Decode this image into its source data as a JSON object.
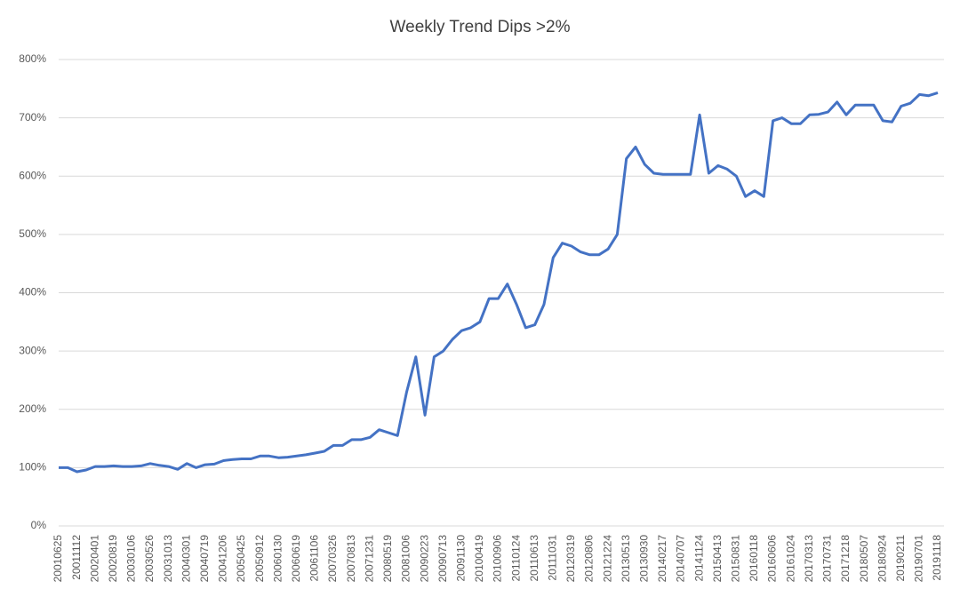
{
  "chart_data": {
    "type": "line",
    "title": "Weekly Trend Dips >2%",
    "categories": [
      "20010625",
      null,
      "20011112",
      null,
      "20020401",
      null,
      "20020819",
      null,
      "20030106",
      null,
      "20030526",
      null,
      "20031013",
      null,
      "20040301",
      null,
      "20040719",
      null,
      "20041206",
      null,
      "20050425",
      null,
      "20050912",
      null,
      "20060130",
      null,
      "20060619",
      null,
      "20061106",
      null,
      "20070326",
      null,
      "20070813",
      null,
      "20071231",
      null,
      "20080519",
      null,
      "20081006",
      null,
      "20090223",
      null,
      "20090713",
      null,
      "20091130",
      null,
      "20100419",
      null,
      "20100906",
      null,
      "20110124",
      null,
      "20110613",
      null,
      "20111031",
      null,
      "20120319",
      null,
      "20120806",
      null,
      "20121224",
      null,
      "20130513",
      null,
      "20130930",
      null,
      "20140217",
      null,
      "20140707",
      null,
      "20141124",
      null,
      "20150413",
      null,
      "20150831",
      null,
      "20160118",
      null,
      "20160606",
      null,
      "20161024",
      null,
      "20170313",
      null,
      "20170731",
      null,
      "20171218",
      null,
      "20180507",
      null,
      "20180924",
      null,
      "20190211",
      null,
      "20190701",
      null,
      "20191118"
    ],
    "series": [
      {
        "name": "Weekly Trend Dips >2%",
        "color": "#4472c4",
        "values": [
          100,
          100,
          93,
          96,
          102,
          102,
          103,
          102,
          102,
          103,
          107,
          104,
          102,
          97,
          107,
          100,
          105,
          106,
          112,
          114,
          115,
          115,
          120,
          120,
          117,
          118,
          120,
          122,
          125,
          128,
          138,
          138,
          148,
          148,
          152,
          165,
          160,
          155,
          230,
          290,
          190,
          290,
          300,
          320,
          335,
          340,
          350,
          390,
          390,
          415,
          380,
          340,
          345,
          380,
          460,
          485,
          480,
          470,
          465,
          465,
          475,
          500,
          630,
          650,
          620,
          605,
          603,
          603,
          603,
          603,
          705,
          605,
          618,
          612,
          600,
          565,
          575,
          565,
          695,
          700,
          690,
          690,
          705,
          706,
          710,
          727,
          705,
          722,
          722,
          722,
          695,
          693,
          720,
          725,
          740,
          738,
          743
        ]
      }
    ],
    "ylim": [
      0,
      800
    ],
    "yticks": [
      {
        "value": 0,
        "label": "0%"
      },
      {
        "value": 100,
        "label": "100%"
      },
      {
        "value": 200,
        "label": "200%"
      },
      {
        "value": 300,
        "label": "300%"
      },
      {
        "value": 400,
        "label": "400%"
      },
      {
        "value": 500,
        "label": "500%"
      },
      {
        "value": 600,
        "label": "600%"
      },
      {
        "value": 700,
        "label": "700%"
      },
      {
        "value": 800,
        "label": "800%"
      }
    ],
    "grid": true
  }
}
